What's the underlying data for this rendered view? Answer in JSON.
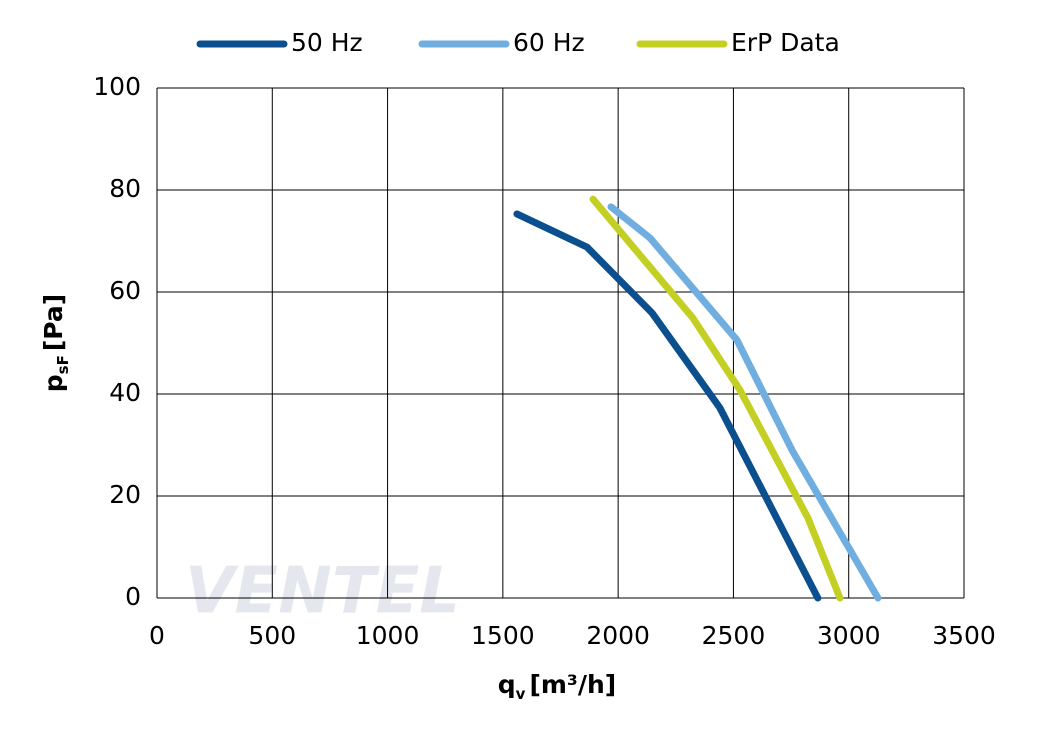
{
  "chart_data": {
    "type": "line",
    "x_label": {
      "main": "q",
      "sub": "v",
      "unit": "[m³/h]"
    },
    "y_label": {
      "main": "p",
      "sub": "sF",
      "unit": "[Pa]"
    },
    "watermark": "VENTEL",
    "xlim": [
      0,
      3500
    ],
    "xticks": [
      0,
      500,
      1000,
      1500,
      2000,
      2500,
      3000,
      3500
    ],
    "ylim": [
      0,
      100
    ],
    "yticks": [
      0,
      20,
      40,
      60,
      80,
      100
    ],
    "grid": true,
    "legend": "top",
    "series": [
      {
        "name": "50 Hz",
        "color": "#0b4f8e",
        "x": [
          1561,
          1865,
          2147,
          2441,
          2866
        ],
        "values": [
          75.3,
          68.8,
          55.9,
          37.3,
          0
        ]
      },
      {
        "name": "60 Hz",
        "color": "#71aee0",
        "x": [
          1969,
          2138,
          2515,
          2754,
          3127
        ],
        "values": [
          76.7,
          70.6,
          50.6,
          29.0,
          0
        ]
      },
      {
        "name": "ErP Data",
        "color": "#c4cf24",
        "x": [
          1891,
          2324,
          2528,
          2823,
          2962
        ],
        "values": [
          78.2,
          54.9,
          40.8,
          15.7,
          0
        ]
      }
    ]
  }
}
